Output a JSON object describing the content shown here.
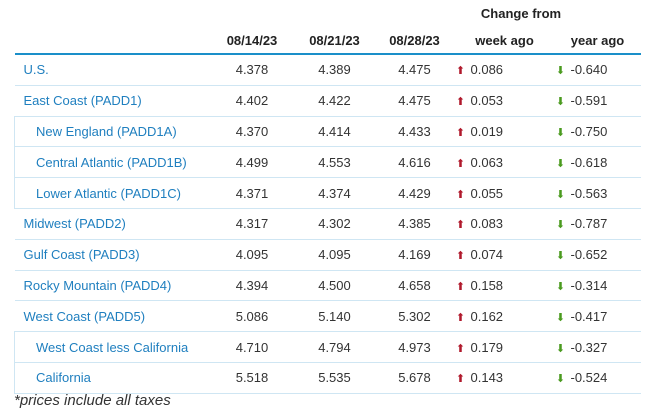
{
  "header": {
    "change_from": "Change from",
    "col_blank": "",
    "col1": "08/14/23",
    "col2": "08/21/23",
    "col3": "08/28/23",
    "col4": "week ago",
    "col5": "year ago"
  },
  "colors": {
    "up": "#b0182b",
    "down": "#4a9a1e",
    "link": "#1f7fbf",
    "rule": "#1a8fc9"
  },
  "rows": [
    {
      "region": "U.S.",
      "indent": false,
      "v1": "4.378",
      "v2": "4.389",
      "v3": "4.475",
      "week": "0.086",
      "week_dir": "up",
      "year": "-0.640",
      "year_dir": "down"
    },
    {
      "region": "East Coast (PADD1)",
      "indent": false,
      "v1": "4.402",
      "v2": "4.422",
      "v3": "4.475",
      "week": "0.053",
      "week_dir": "up",
      "year": "-0.591",
      "year_dir": "down"
    },
    {
      "region": "New England (PADD1A)",
      "indent": true,
      "v1": "4.370",
      "v2": "4.414",
      "v3": "4.433",
      "week": "0.019",
      "week_dir": "up",
      "year": "-0.750",
      "year_dir": "down"
    },
    {
      "region": "Central Atlantic (PADD1B)",
      "indent": true,
      "v1": "4.499",
      "v2": "4.553",
      "v3": "4.616",
      "week": "0.063",
      "week_dir": "up",
      "year": "-0.618",
      "year_dir": "down"
    },
    {
      "region": "Lower Atlantic (PADD1C)",
      "indent": true,
      "v1": "4.371",
      "v2": "4.374",
      "v3": "4.429",
      "week": "0.055",
      "week_dir": "up",
      "year": "-0.563",
      "year_dir": "down"
    },
    {
      "region": "Midwest (PADD2)",
      "indent": false,
      "v1": "4.317",
      "v2": "4.302",
      "v3": "4.385",
      "week": "0.083",
      "week_dir": "up",
      "year": "-0.787",
      "year_dir": "down"
    },
    {
      "region": "Gulf Coast (PADD3)",
      "indent": false,
      "v1": "4.095",
      "v2": "4.095",
      "v3": "4.169",
      "week": "0.074",
      "week_dir": "up",
      "year": "-0.652",
      "year_dir": "down"
    },
    {
      "region": "Rocky Mountain (PADD4)",
      "indent": false,
      "v1": "4.394",
      "v2": "4.500",
      "v3": "4.658",
      "week": "0.158",
      "week_dir": "up",
      "year": "-0.314",
      "year_dir": "down"
    },
    {
      "region": "West Coast (PADD5)",
      "indent": false,
      "v1": "5.086",
      "v2": "5.140",
      "v3": "5.302",
      "week": "0.162",
      "week_dir": "up",
      "year": "-0.417",
      "year_dir": "down"
    },
    {
      "region": "West Coast less California",
      "indent": true,
      "v1": "4.710",
      "v2": "4.794",
      "v3": "4.973",
      "week": "0.179",
      "week_dir": "up",
      "year": "-0.327",
      "year_dir": "down"
    },
    {
      "region": "California",
      "indent": true,
      "v1": "5.518",
      "v2": "5.535",
      "v3": "5.678",
      "week": "0.143",
      "week_dir": "up",
      "year": "-0.524",
      "year_dir": "down"
    }
  ],
  "footnote": "*prices include all taxes"
}
